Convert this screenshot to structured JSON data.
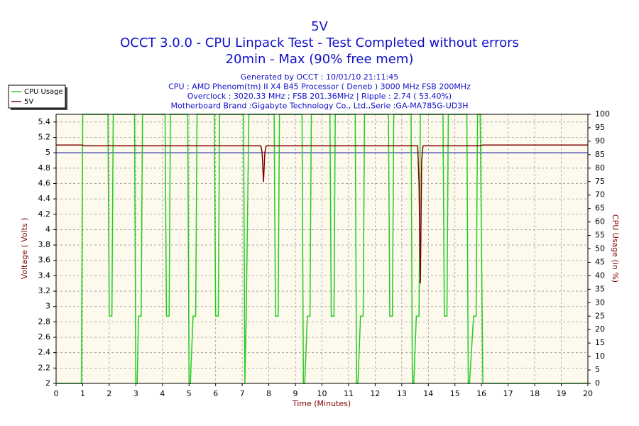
{
  "chart_data": {
    "type": "line",
    "title": "5V",
    "subtitle": "OCCT 3.0.0 - CPU Linpack Test - Test Completed without errors",
    "subtitle2": "20min - Max (90% free mem)",
    "info": [
      "Generated by OCCT : 10/01/10 21:11:45",
      "CPU : AMD Phenom(tm) II X4 B45 Processor ( Deneb ) 3000 MHz FSB 200MHz",
      "Overclock : 3020.33 MHz ; FSB 201.36MHz | Ripple : 2.74 ( 53.40%)",
      "Motherboard Brand :Gigabyte Technology Co., Ltd.,Serie :GA-MA785G-UD3H"
    ],
    "xlabel": "Time (Minutes)",
    "ylabel": "Voltage ( Volts )",
    "y2label": "CPU Usage (in %)",
    "xlim": [
      0,
      20
    ],
    "xticks": [
      0,
      1,
      2,
      3,
      4,
      5,
      6,
      7,
      8,
      9,
      10,
      11,
      12,
      13,
      14,
      15,
      16,
      17,
      18,
      19,
      20
    ],
    "ylim": [
      2,
      5.5
    ],
    "yticks": [
      2,
      2.2,
      2.4,
      2.6,
      2.8,
      3,
      3.2,
      3.4,
      3.6,
      3.8,
      4,
      4.2,
      4.4,
      4.6,
      4.8,
      5,
      5.2,
      5.4
    ],
    "y2lim": [
      0,
      100
    ],
    "y2ticks": [
      0,
      5,
      10,
      15,
      20,
      25,
      30,
      35,
      40,
      45,
      50,
      55,
      60,
      65,
      70,
      75,
      80,
      85,
      90,
      95,
      100
    ],
    "grid": true,
    "legend": "top-left",
    "reference_line": {
      "value": 5,
      "color": "#0000a0"
    },
    "series": [
      {
        "name": "CPU Usage",
        "color": "#22cc22",
        "axis": "y2",
        "x": [
          0,
          0.95,
          1.0,
          1.1,
          1.95,
          2.0,
          2.1,
          2.15,
          2.95,
          3.0,
          3.05,
          3.1,
          3.2,
          3.25,
          4.1,
          4.15,
          4.25,
          4.3,
          4.95,
          5.0,
          5.05,
          5.15,
          5.25,
          5.3,
          5.95,
          6.0,
          6.1,
          6.15,
          7.05,
          7.1,
          7.15,
          7.25,
          8.2,
          8.25,
          8.35,
          8.4,
          9.25,
          9.3,
          9.35,
          9.45,
          9.55,
          9.6,
          10.3,
          10.35,
          10.45,
          10.5,
          11.25,
          11.3,
          11.35,
          11.45,
          11.55,
          11.6,
          12.5,
          12.55,
          12.65,
          12.7,
          13.35,
          13.4,
          13.45,
          13.55,
          13.65,
          13.7,
          14.55,
          14.6,
          14.7,
          14.75,
          15.45,
          15.5,
          15.55,
          15.7,
          15.8,
          15.85,
          15.95,
          16.05,
          20
        ],
        "values": [
          0,
          0,
          100,
          100,
          100,
          25,
          25,
          100,
          100,
          0,
          0,
          25,
          25,
          100,
          100,
          25,
          25,
          100,
          100,
          0,
          0,
          25,
          25,
          100,
          100,
          25,
          25,
          100,
          100,
          0,
          25,
          100,
          100,
          25,
          25,
          100,
          100,
          0,
          0,
          25,
          25,
          100,
          100,
          25,
          25,
          100,
          100,
          0,
          0,
          25,
          25,
          100,
          100,
          25,
          25,
          100,
          100,
          0,
          0,
          25,
          25,
          100,
          100,
          25,
          25,
          100,
          100,
          0,
          0,
          25,
          25,
          100,
          100,
          0,
          0
        ]
      },
      {
        "name": "5V",
        "color": "#800000",
        "axis": "y",
        "x": [
          0,
          1,
          1.05,
          7.7,
          7.75,
          7.8,
          7.85,
          7.9,
          13.6,
          13.65,
          13.7,
          13.75,
          13.8,
          16,
          16.05,
          20
        ],
        "values": [
          5.1,
          5.1,
          5.09,
          5.09,
          5.0,
          4.62,
          5.0,
          5.09,
          5.09,
          4.6,
          3.3,
          4.9,
          5.09,
          5.09,
          5.1,
          5.1
        ]
      }
    ]
  }
}
